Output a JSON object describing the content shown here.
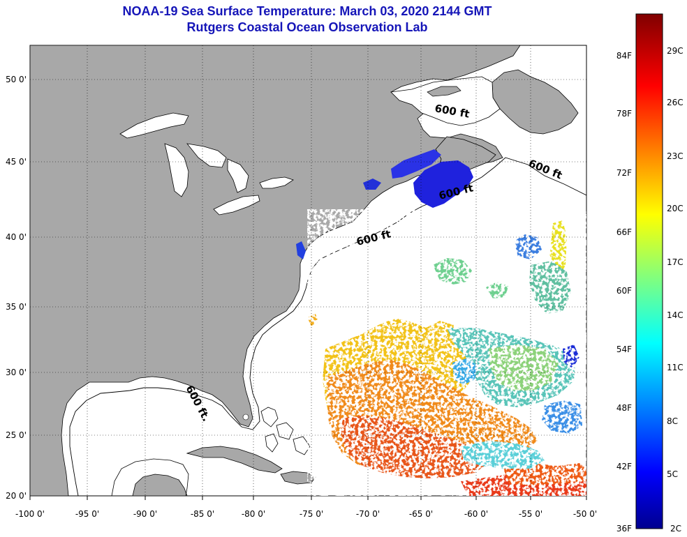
{
  "title_line1": "NOAA-19 Sea Surface Temperature:  March 03, 2020 2144 GMT",
  "title_line2": "Rutgers Coastal Ocean Observation Lab",
  "lat_labels": [
    "50 0'",
    "45 0'",
    "40 0'",
    "35 0'",
    "30 0'",
    "25 0'",
    "20 0'"
  ],
  "lon_labels": [
    "-100 0'",
    "-95 0'",
    "-90 0'",
    "-85 0'",
    "-80 0'",
    "-75 0'",
    "-70 0'",
    "-65 0'",
    "-60 0'",
    "-55 0'",
    "-50 0'"
  ],
  "contour_label": "600 ft",
  "contour_label_gulf": "600 ft.",
  "colorbar_f_labels": [
    "84F",
    "78F",
    "72F",
    "66F",
    "60F",
    "54F",
    "48F",
    "42F",
    "36F"
  ],
  "colorbar_c_labels": [
    "29C",
    "26C",
    "23C",
    "20C",
    "17C",
    "14C",
    "11C",
    "8C",
    "5C",
    "2C"
  ],
  "colors": {
    "title": "#1515b8",
    "land": "#a8a8a8",
    "ocean": "#ffffff"
  }
}
